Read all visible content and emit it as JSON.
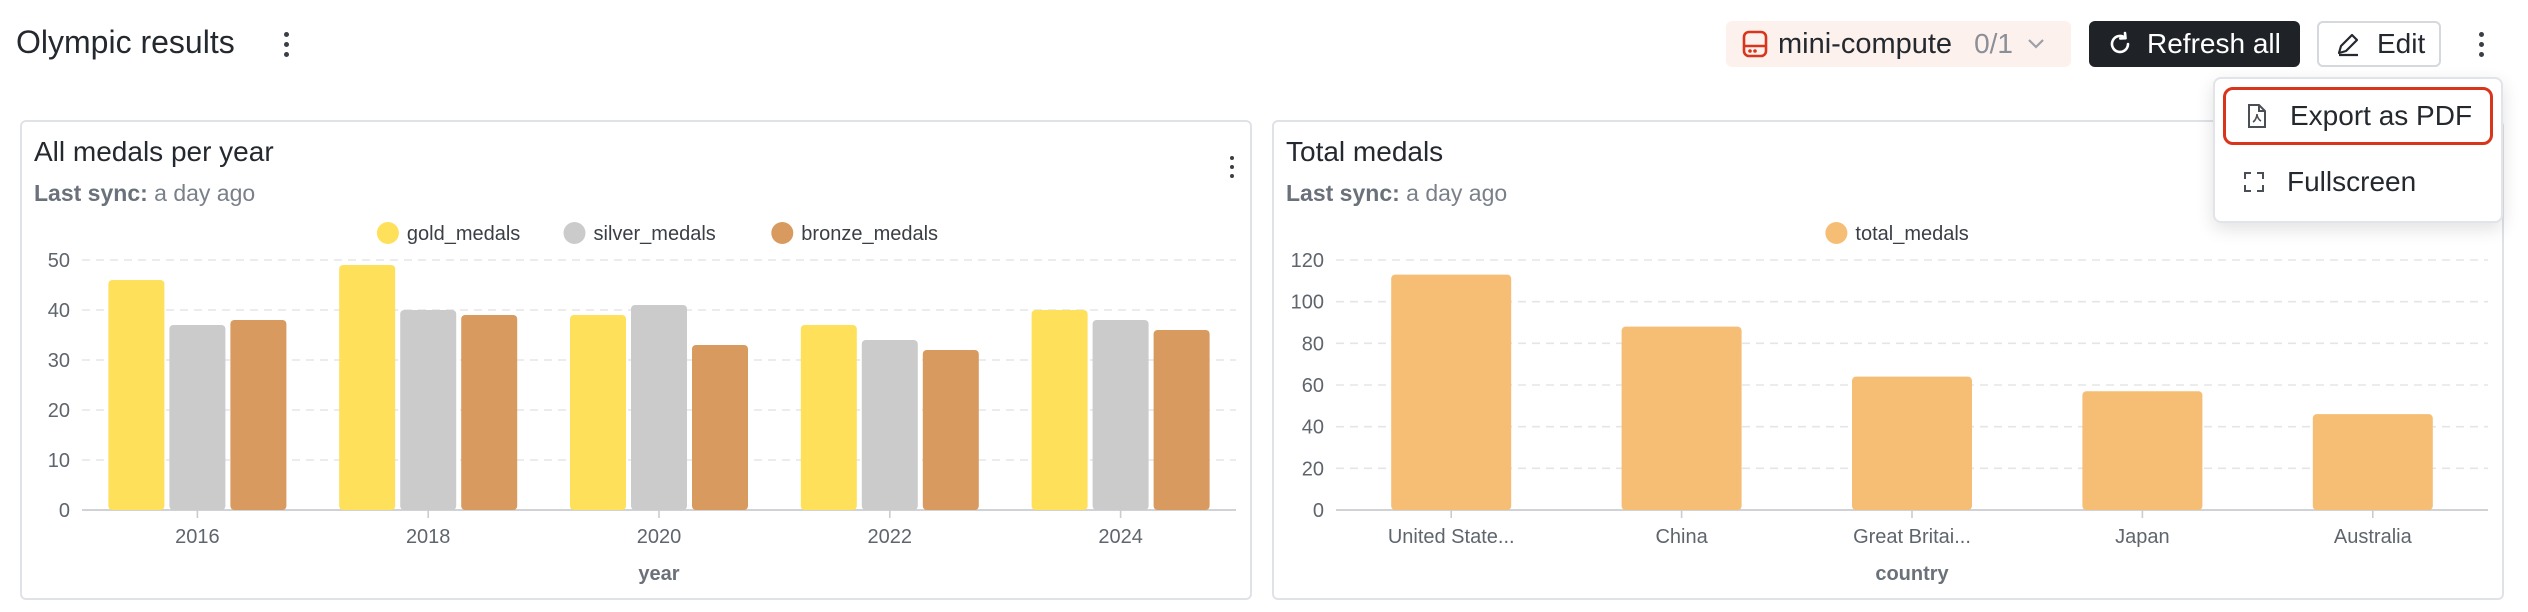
{
  "header": {
    "title": "Olympic results",
    "compute_name": "mini-compute",
    "compute_count": "0/1",
    "refresh_label": "Refresh all",
    "edit_label": "Edit"
  },
  "menu": {
    "items": [
      {
        "label": "Export as PDF",
        "icon": "file-pdf-icon"
      },
      {
        "label": "Fullscreen",
        "icon": "fullscreen-icon"
      }
    ]
  },
  "cards": [
    {
      "title": "All medals per year",
      "sync_label": "Last sync:",
      "sync_value": "a day ago"
    },
    {
      "title": "Total medals",
      "sync_label": "Last sync:",
      "sync_value": "a day ago"
    }
  ],
  "colors": {
    "gold": "#fee05a",
    "silver": "#cbcbcb",
    "bronze": "#d89a5e",
    "total": "#f6bd74",
    "compute_accent": "#d9341c",
    "menu_highlight": "#d9341c"
  },
  "chart_data": [
    {
      "type": "bar",
      "title": "All medals per year",
      "xlabel": "year",
      "ylabel": "",
      "categories": [
        "2016",
        "2018",
        "2020",
        "2022",
        "2024"
      ],
      "series": [
        {
          "name": "gold_medals",
          "values": [
            46,
            49,
            39,
            37,
            40
          ]
        },
        {
          "name": "silver_medals",
          "values": [
            37,
            40,
            41,
            34,
            38
          ]
        },
        {
          "name": "bronze_medals",
          "values": [
            38,
            39,
            33,
            32,
            36
          ]
        }
      ],
      "ylim": [
        0,
        50
      ],
      "yticks": [
        0,
        10,
        20,
        30,
        40,
        50
      ],
      "grid": true,
      "legend": "top-center"
    },
    {
      "type": "bar",
      "title": "Total medals",
      "xlabel": "country",
      "ylabel": "",
      "categories": [
        "United State...",
        "China",
        "Great Britai...",
        "Japan",
        "Australia"
      ],
      "series": [
        {
          "name": "total_medals",
          "values": [
            113,
            88,
            64,
            57,
            46
          ]
        }
      ],
      "ylim": [
        0,
        120
      ],
      "yticks": [
        0,
        20,
        40,
        60,
        80,
        100,
        120
      ],
      "grid": true,
      "legend": "top-center"
    }
  ]
}
